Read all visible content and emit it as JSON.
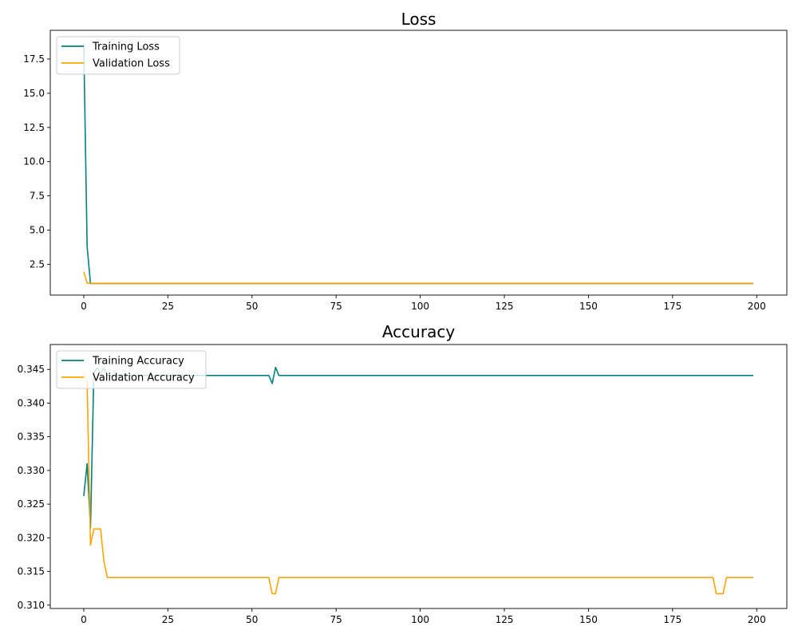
{
  "colors": {
    "training": "#008080",
    "validation": "#FFA500",
    "axes": "#000000",
    "legend_border": "#cccccc"
  },
  "chart_data": [
    {
      "type": "line",
      "title": "Loss",
      "xlabel": "",
      "ylabel": "",
      "xlim": [
        -9.95,
        208.95
      ],
      "ylim": [
        0.25,
        19.6
      ],
      "xticks": [
        0,
        25,
        50,
        75,
        100,
        125,
        150,
        175,
        200
      ],
      "yticks": [
        2.5,
        5.0,
        7.5,
        10.0,
        12.5,
        15.0,
        17.5
      ],
      "ytick_decimals": 1,
      "grid": false,
      "legend_position": "top-left",
      "series": [
        {
          "name": "Training Loss",
          "color_key": "training",
          "points": [
            [
              0,
              18.6
            ],
            [
              1,
              3.8
            ],
            [
              2,
              1.1
            ],
            [
              199,
              1.1
            ]
          ]
        },
        {
          "name": "Validation Loss",
          "color_key": "validation",
          "points": [
            [
              0,
              1.95
            ],
            [
              1,
              1.12
            ],
            [
              2,
              1.1
            ],
            [
              199,
              1.1
            ]
          ]
        }
      ]
    },
    {
      "type": "line",
      "title": "Accuracy",
      "xlabel": "",
      "ylabel": "",
      "xlim": [
        -9.95,
        208.95
      ],
      "ylim": [
        0.3095,
        0.3487
      ],
      "xticks": [
        0,
        25,
        50,
        75,
        100,
        125,
        150,
        175,
        200
      ],
      "yticks": [
        0.31,
        0.315,
        0.32,
        0.325,
        0.33,
        0.335,
        0.34,
        0.345
      ],
      "ytick_decimals": 3,
      "grid": false,
      "legend_position": "top-left",
      "series": [
        {
          "name": "Training Accuracy",
          "color_key": "training",
          "points": [
            [
              0,
              0.3262
            ],
            [
              1,
              0.331
            ],
            [
              2,
              0.3215
            ],
            [
              3,
              0.3445
            ],
            [
              4,
              0.3452
            ],
            [
              5,
              0.3445
            ],
            [
              6,
              0.3452
            ],
            [
              7,
              0.3441
            ],
            [
              55,
              0.3441
            ],
            [
              56,
              0.3429
            ],
            [
              57,
              0.3453
            ],
            [
              58,
              0.3441
            ],
            [
              199,
              0.3441
            ]
          ]
        },
        {
          "name": "Validation Accuracy",
          "color_key": "validation",
          "points": [
            [
              0,
              0.3443
            ],
            [
              1,
              0.343
            ],
            [
              2,
              0.3189
            ],
            [
              3,
              0.3213
            ],
            [
              4,
              0.3213
            ],
            [
              5,
              0.3213
            ],
            [
              6,
              0.3165
            ],
            [
              7,
              0.3141
            ],
            [
              55,
              0.3141
            ],
            [
              56,
              0.3117
            ],
            [
              57,
              0.3117
            ],
            [
              58,
              0.3141
            ],
            [
              187,
              0.3141
            ],
            [
              188,
              0.3117
            ],
            [
              190,
              0.3117
            ],
            [
              191,
              0.3141
            ],
            [
              199,
              0.3141
            ]
          ]
        }
      ]
    }
  ]
}
